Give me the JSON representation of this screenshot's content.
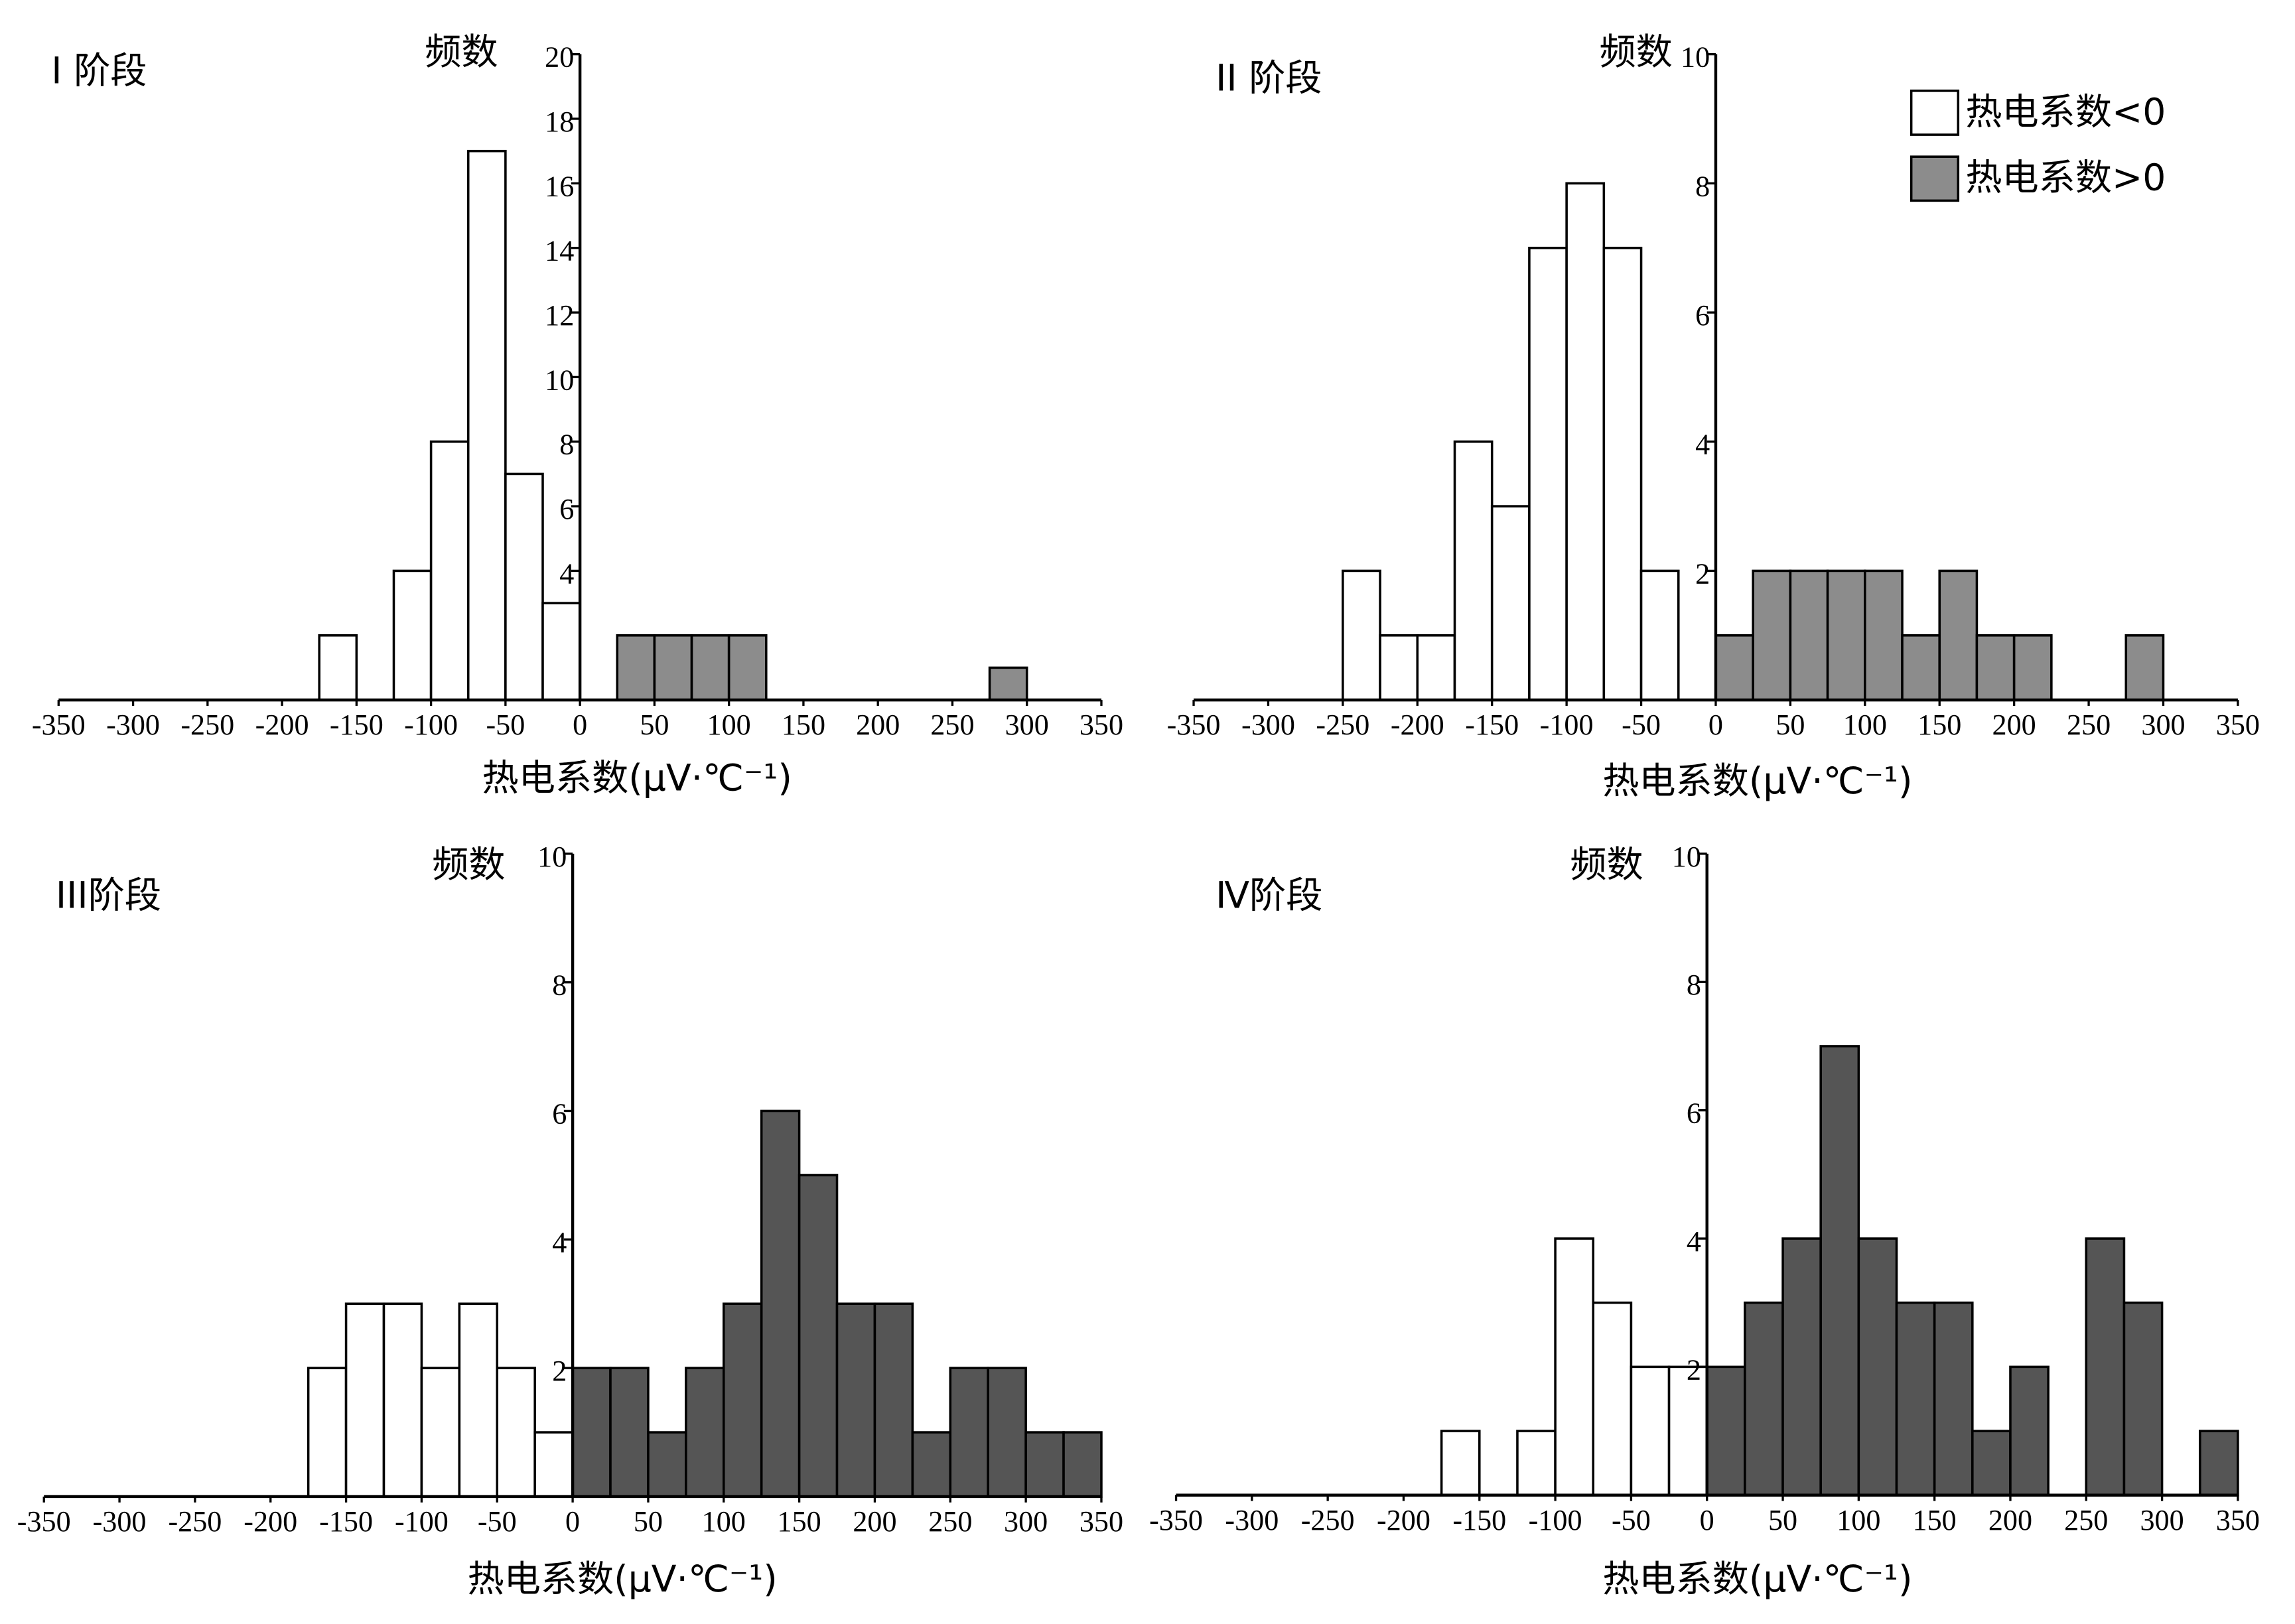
{
  "chart_data": [
    {
      "type": "histogram",
      "title": "I 阶段",
      "y_label": "频数",
      "x_label": "热电系数(μV·℃⁻¹)",
      "xlim": [
        -350,
        350
      ],
      "xticks": [
        -350,
        -300,
        -250,
        -200,
        -150,
        -100,
        -50,
        0,
        50,
        100,
        150,
        200,
        250,
        300,
        350
      ],
      "ylim": [
        0,
        20
      ],
      "yticks": [
        4,
        6,
        8,
        10,
        12,
        14,
        16,
        18,
        20
      ],
      "series": [
        {
          "color": "#ffffff",
          "bins": [
            -175,
            -150,
            -125,
            -100,
            -75,
            -50,
            -25,
            0
          ],
          "values": [
            2,
            0,
            4,
            8,
            17,
            7,
            3
          ]
        },
        {
          "color": "#8c8c8c",
          "bins": [
            25,
            50,
            75,
            100,
            125,
            150,
            175,
            200,
            225,
            250,
            275,
            300
          ],
          "values": [
            2,
            2,
            2,
            2,
            0,
            0,
            0,
            0,
            0,
            0,
            1
          ]
        }
      ]
    },
    {
      "type": "histogram",
      "title": "II 阶段",
      "y_label": "频数",
      "x_label": "热电系数(μV·℃⁻¹)",
      "xlim": [
        -350,
        350
      ],
      "xticks": [
        -350,
        -300,
        -250,
        -200,
        -150,
        -100,
        -50,
        0,
        50,
        100,
        150,
        200,
        250,
        300,
        350
      ],
      "ylim": [
        0,
        10
      ],
      "yticks": [
        2,
        4,
        6,
        8,
        10
      ],
      "legend": "upper right",
      "series": [
        {
          "name": "热电系数<0",
          "color": "#ffffff",
          "bins": [
            -250,
            -225,
            -200,
            -175,
            -150,
            -125,
            -100,
            -75,
            -50,
            -25
          ],
          "values": [
            2,
            1,
            1,
            4,
            3,
            7,
            8,
            7,
            2
          ]
        },
        {
          "name": "热电系数>0",
          "color": "#8c8c8c",
          "bins": [
            0,
            25,
            50,
            75,
            100,
            125,
            150,
            175,
            200,
            225,
            250,
            275,
            300
          ],
          "values": [
            1,
            2,
            2,
            2,
            2,
            1,
            2,
            1,
            1,
            0,
            0,
            1
          ]
        }
      ]
    },
    {
      "type": "histogram",
      "title": "III阶段",
      "y_label": "频数",
      "x_label": "热电系数(μV·℃⁻¹)",
      "xlim": [
        -350,
        350
      ],
      "xticks": [
        -350,
        -300,
        -250,
        -200,
        -150,
        -100,
        -50,
        0,
        50,
        100,
        150,
        200,
        250,
        300,
        350
      ],
      "ylim": [
        0,
        10
      ],
      "yticks": [
        2,
        4,
        6,
        8,
        10
      ],
      "series": [
        {
          "color": "#ffffff",
          "bins": [
            -175,
            -150,
            -125,
            -100,
            -75,
            -50,
            -25,
            0
          ],
          "values": [
            2,
            3,
            3,
            2,
            3,
            2,
            1
          ]
        },
        {
          "color": "#555555",
          "bins": [
            0,
            25,
            50,
            75,
            100,
            125,
            150,
            175,
            200,
            225,
            250,
            275,
            300,
            325,
            350
          ],
          "values": [
            2,
            2,
            1,
            2,
            3,
            6,
            5,
            3,
            3,
            1,
            2,
            2,
            1,
            1
          ]
        }
      ]
    },
    {
      "type": "histogram",
      "title": "Ⅳ阶段",
      "y_label": "频数",
      "x_label": "热电系数(μV·℃⁻¹)",
      "xlim": [
        -350,
        350
      ],
      "xticks": [
        -350,
        -300,
        -250,
        -200,
        -150,
        -100,
        -50,
        0,
        50,
        100,
        150,
        200,
        250,
        300,
        350
      ],
      "ylim": [
        0,
        10
      ],
      "yticks": [
        2,
        4,
        6,
        8,
        10
      ],
      "series": [
        {
          "color": "#ffffff",
          "bins": [
            -175,
            -150,
            -125,
            -100,
            -75,
            -50,
            -25,
            0
          ],
          "values": [
            1,
            0,
            1,
            4,
            3,
            2,
            2
          ]
        },
        {
          "color": "#555555",
          "bins": [
            0,
            25,
            50,
            75,
            100,
            125,
            150,
            175,
            200,
            225,
            250,
            275,
            300,
            325,
            350
          ],
          "values": [
            2,
            3,
            4,
            7,
            4,
            3,
            3,
            1,
            2,
            0,
            4,
            3,
            0,
            1
          ]
        }
      ]
    }
  ]
}
